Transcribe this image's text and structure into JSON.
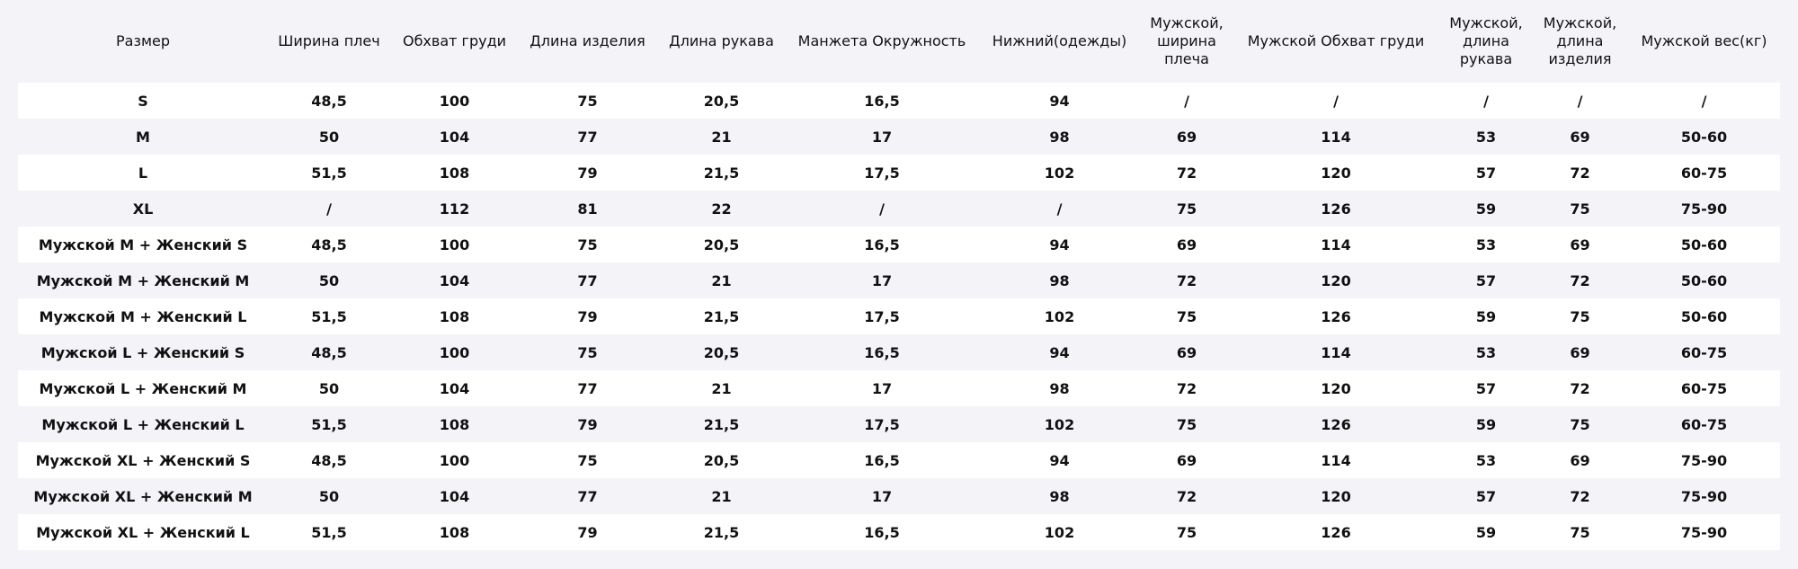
{
  "table": {
    "header": [
      "Размер",
      "Ширина плеч",
      "Обхват груди",
      "Длина изделия",
      "Длина рукава",
      "Манжета Окружность",
      "Нижний(одежды)",
      "Мужской, ширина плеча",
      "Мужской Обхват груди",
      "Мужской, длина рукава",
      "Мужской, длина изделия",
      "Мужской вес(кг)"
    ],
    "rows": [
      [
        "S",
        "48,5",
        "100",
        "75",
        "20,5",
        "16,5",
        "94",
        "/",
        "/",
        "/",
        "/",
        "/"
      ],
      [
        "M",
        "50",
        "104",
        "77",
        "21",
        "17",
        "98",
        "69",
        "114",
        "53",
        "69",
        "50-60"
      ],
      [
        "L",
        "51,5",
        "108",
        "79",
        "21,5",
        "17,5",
        "102",
        "72",
        "120",
        "57",
        "72",
        "60-75"
      ],
      [
        "XL",
        "/",
        "112",
        "81",
        "22",
        "/",
        "/",
        "75",
        "126",
        "59",
        "75",
        "75-90"
      ],
      [
        "Мужской M + Женский S",
        "48,5",
        "100",
        "75",
        "20,5",
        "16,5",
        "94",
        "69",
        "114",
        "53",
        "69",
        "50-60"
      ],
      [
        "Мужской M + Женский M",
        "50",
        "104",
        "77",
        "21",
        "17",
        "98",
        "72",
        "120",
        "57",
        "72",
        "50-60"
      ],
      [
        "Мужской M + Женский L",
        "51,5",
        "108",
        "79",
        "21,5",
        "17,5",
        "102",
        "75",
        "126",
        "59",
        "75",
        "50-60"
      ],
      [
        "Мужской L + Женский S",
        "48,5",
        "100",
        "75",
        "20,5",
        "16,5",
        "94",
        "69",
        "114",
        "53",
        "69",
        "60-75"
      ],
      [
        "Мужской L + Женский M",
        "50",
        "104",
        "77",
        "21",
        "17",
        "98",
        "72",
        "120",
        "57",
        "72",
        "60-75"
      ],
      [
        "Мужской L + Женский L",
        "51,5",
        "108",
        "79",
        "21,5",
        "17,5",
        "102",
        "75",
        "126",
        "59",
        "75",
        "60-75"
      ],
      [
        "Мужской XL + Женский S",
        "48,5",
        "100",
        "75",
        "20,5",
        "16,5",
        "94",
        "69",
        "114",
        "53",
        "69",
        "75-90"
      ],
      [
        "Мужской XL + Женский M",
        "50",
        "104",
        "77",
        "21",
        "17",
        "98",
        "72",
        "120",
        "57",
        "72",
        "75-90"
      ],
      [
        "Мужской XL + Женский L",
        "51,5",
        "108",
        "79",
        "21,5",
        "16,5",
        "102",
        "75",
        "126",
        "59",
        "75",
        "75-90"
      ]
    ]
  }
}
